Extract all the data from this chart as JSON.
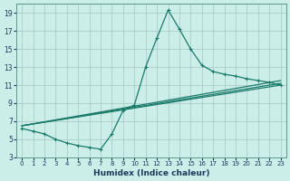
{
  "xlabel": "Humidex (Indice chaleur)",
  "bg_color": "#cceee8",
  "grid_color": "#aacccc",
  "line_color": "#1a7a6a",
  "xlim": [
    -0.5,
    23.5
  ],
  "ylim": [
    3,
    20
  ],
  "xtick_labels": [
    "0",
    "1",
    "2",
    "3",
    "4",
    "5",
    "6",
    "7",
    "8",
    "9",
    "10",
    "11",
    "12",
    "13",
    "14",
    "15",
    "16",
    "17",
    "18",
    "19",
    "20",
    "21",
    "22",
    "23"
  ],
  "xtick_vals": [
    0,
    1,
    2,
    3,
    4,
    5,
    6,
    7,
    8,
    9,
    10,
    11,
    12,
    13,
    14,
    15,
    16,
    17,
    18,
    19,
    20,
    21,
    22,
    23
  ],
  "ytick_vals": [
    3,
    5,
    7,
    9,
    11,
    13,
    15,
    17,
    19
  ],
  "main_curve": {
    "x": [
      0,
      1,
      2,
      3,
      4,
      5,
      6,
      7,
      8,
      9,
      10,
      11,
      12,
      13,
      14,
      15,
      16,
      17,
      18,
      19,
      20,
      21,
      22,
      23
    ],
    "y": [
      6.2,
      5.9,
      5.6,
      5.0,
      4.6,
      4.3,
      4.1,
      3.9,
      5.6,
      8.2,
      8.8,
      13.0,
      16.2,
      19.3,
      17.2,
      15.0,
      13.2,
      12.5,
      12.2,
      12.0,
      11.7,
      11.5,
      11.3,
      11.0
    ]
  },
  "flat_curves": [
    {
      "x": [
        0,
        23
      ],
      "y": [
        6.5,
        11.0
      ]
    },
    {
      "x": [
        0,
        23
      ],
      "y": [
        6.5,
        11.2
      ]
    },
    {
      "x": [
        0,
        23
      ],
      "y": [
        6.5,
        11.5
      ]
    }
  ]
}
